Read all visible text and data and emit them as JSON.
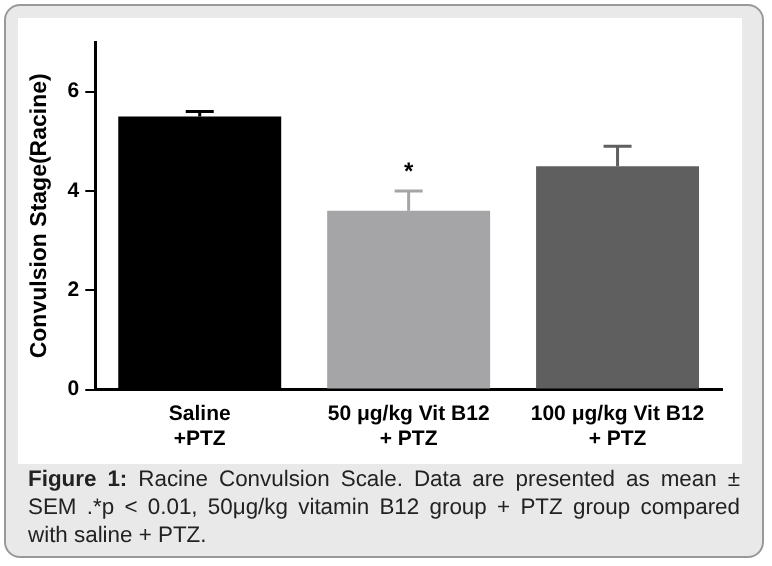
{
  "chart_data": {
    "type": "bar",
    "ylabel": "Convulsion Stage(Racine)",
    "categories": [
      "Saline\n+PTZ",
      "50 μg/kg Vit B12\n+ PTZ",
      "100 μg/kg Vit B12\n+ PTZ"
    ],
    "values": [
      5.5,
      3.6,
      4.5
    ],
    "errors": [
      0.1,
      0.4,
      0.4
    ],
    "colors": [
      "#000000",
      "#a5a5a7",
      "#5f5f5f"
    ],
    "ylim": [
      0,
      7
    ],
    "yticks": [
      0,
      2,
      4,
      6
    ],
    "grid": false,
    "legend": false,
    "annotations": [
      {
        "text": "*",
        "x": "50 μg/kg Vit B12\n+ PTZ",
        "y": 4.0
      },
      "Figure 1: Racine Convulsion Scale. Data are presented as mean ± SEM .*p < 0.01, 50μg/kg vitamin B12 group + PTZ group compared with saline + PTZ."
    ]
  }
}
